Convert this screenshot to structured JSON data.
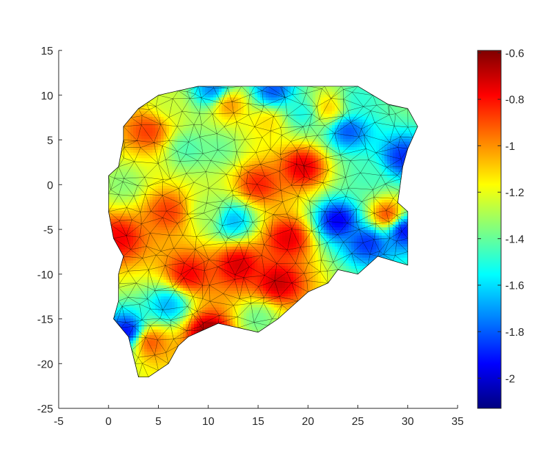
{
  "chart_data": {
    "type": "heatmap",
    "subtype": "triangulated-mesh",
    "title": "",
    "xlabel": "",
    "ylabel": "",
    "xlim": [
      -5,
      35
    ],
    "ylim": [
      -25,
      15
    ],
    "x_ticks": [
      -5,
      0,
      5,
      10,
      15,
      20,
      25,
      30,
      35
    ],
    "x_tick_labels": [
      "-5",
      "0",
      "5",
      "10",
      "15",
      "20",
      "25",
      "30",
      "35"
    ],
    "y_ticks": [
      -25,
      -20,
      -15,
      -10,
      -5,
      0,
      5,
      10,
      15
    ],
    "y_tick_labels": [
      "-25",
      "-20",
      "-15",
      "-10",
      "-5",
      "0",
      "5",
      "10",
      "15"
    ],
    "grid": false,
    "edge_color": "#000000",
    "colormap": "jet",
    "colorbar": {
      "location": "right",
      "clim": [
        -2.13,
        -0.59
      ],
      "ticks": [
        -0.6,
        -0.8,
        -1,
        -1.2,
        -1.4,
        -1.6,
        -1.8,
        -2
      ],
      "tick_labels": [
        "-0.6",
        "-0.8",
        "-1",
        "-1.2",
        "-1.4",
        "-1.6",
        "-1.8",
        "-2"
      ]
    },
    "boundary": [
      [
        1.5,
        6.5
      ],
      [
        3,
        8.5
      ],
      [
        5,
        10
      ],
      [
        7,
        10.5
      ],
      [
        9,
        11
      ],
      [
        12,
        11
      ],
      [
        16,
        11
      ],
      [
        20,
        11
      ],
      [
        25,
        11
      ],
      [
        28,
        9
      ],
      [
        30,
        8.5
      ],
      [
        31,
        6.5
      ],
      [
        30,
        4
      ],
      [
        29.5,
        2
      ],
      [
        29,
        -2
      ],
      [
        30,
        -3
      ],
      [
        30,
        -6
      ],
      [
        30,
        -9
      ],
      [
        27,
        -8
      ],
      [
        25,
        -10
      ],
      [
        23,
        -9.5
      ],
      [
        22,
        -11
      ],
      [
        20,
        -12
      ],
      [
        19,
        -13
      ],
      [
        17,
        -15
      ],
      [
        15,
        -16.5
      ],
      [
        13,
        -16
      ],
      [
        11,
        -15.5
      ],
      [
        8,
        -17
      ],
      [
        7,
        -18
      ],
      [
        6,
        -20
      ],
      [
        4,
        -21.5
      ],
      [
        3,
        -21.5
      ],
      [
        2,
        -17
      ],
      [
        0.5,
        -15
      ],
      [
        1,
        -13
      ],
      [
        1,
        -10
      ],
      [
        1.5,
        -8
      ],
      [
        0.5,
        -6
      ],
      [
        0,
        -3
      ],
      [
        0,
        -1
      ],
      [
        0,
        1
      ],
      [
        1,
        2
      ],
      [
        1.5,
        5
      ]
    ],
    "hotspots": [
      {
        "x": 10,
        "y": -16.5,
        "value": -0.6
      },
      {
        "x": 17,
        "y": -11,
        "value": -0.68
      },
      {
        "x": 13,
        "y": -9,
        "value": -0.7
      },
      {
        "x": 8,
        "y": -10,
        "value": -0.75
      },
      {
        "x": 18,
        "y": -6,
        "value": -0.72
      },
      {
        "x": 19.5,
        "y": 2,
        "value": -0.7
      },
      {
        "x": 15,
        "y": 0,
        "value": -0.8
      },
      {
        "x": 4,
        "y": 6,
        "value": -0.85
      },
      {
        "x": 1,
        "y": -6,
        "value": -0.75
      },
      {
        "x": 4,
        "y": -17.5,
        "value": -0.85
      },
      {
        "x": 6,
        "y": -3,
        "value": -0.85
      },
      {
        "x": 28,
        "y": -3.5,
        "value": -0.8
      },
      {
        "x": 12,
        "y": 9,
        "value": -0.95
      },
      {
        "x": 22,
        "y": 8.5,
        "value": -1.05
      },
      {
        "x": 16,
        "y": 7,
        "value": -1.1
      },
      {
        "x": 23,
        "y": -4,
        "value": -2.0
      },
      {
        "x": 26,
        "y": -6.5,
        "value": -1.9
      },
      {
        "x": 29.5,
        "y": -5,
        "value": -2.0
      },
      {
        "x": 24,
        "y": 6,
        "value": -1.85
      },
      {
        "x": 29.5,
        "y": 3,
        "value": -1.9
      },
      {
        "x": 2,
        "y": -16.5,
        "value": -2.0
      },
      {
        "x": 6,
        "y": -13.5,
        "value": -1.7
      },
      {
        "x": 12.5,
        "y": -4,
        "value": -1.7
      },
      {
        "x": 10.5,
        "y": 10.5,
        "value": -1.8
      },
      {
        "x": 16.5,
        "y": 10.5,
        "value": -1.85
      },
      {
        "x": 19.5,
        "y": 8,
        "value": -1.55
      },
      {
        "x": 8,
        "y": 4,
        "value": -1.45
      },
      {
        "x": 11,
        "y": 4,
        "value": -1.4
      },
      {
        "x": 15,
        "y": -15,
        "value": -1.4
      },
      {
        "x": 10,
        "y": -3,
        "value": -1.3
      },
      {
        "x": 26,
        "y": 1,
        "value": -1.45
      },
      {
        "x": 25,
        "y": 9.5,
        "value": -1.5
      },
      {
        "x": 1.5,
        "y": 0,
        "value": -1.35
      },
      {
        "x": 6,
        "y": 9,
        "value": -1.25
      }
    ]
  }
}
